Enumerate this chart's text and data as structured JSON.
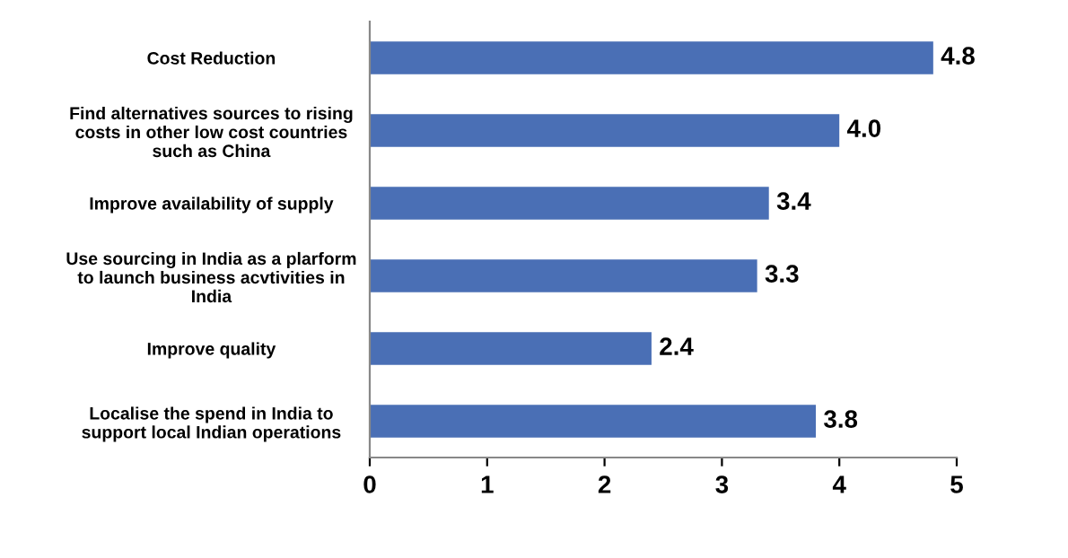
{
  "chart_data": {
    "type": "bar",
    "orientation": "horizontal",
    "categories": [
      "Cost Reduction",
      "Find alternatives sources to rising\ncosts in other low cost countries\nsuch as China",
      "Improve availability of supply",
      "Use sourcing in India as a plarform\nto launch business acvtivities in\nIndia",
      "Improve quality",
      "Localise the spend in India to\nsupport local Indian operations"
    ],
    "values": [
      4.8,
      4.0,
      3.4,
      3.3,
      2.4,
      3.8
    ],
    "value_labels": [
      "4.8",
      "4.0",
      "3.4",
      "3.3",
      "2.4",
      "3.8"
    ],
    "color": "#4a6fb5",
    "grid": false,
    "xlim": [
      0,
      5
    ],
    "xticks": [
      0,
      1,
      2,
      3,
      4,
      5
    ]
  }
}
